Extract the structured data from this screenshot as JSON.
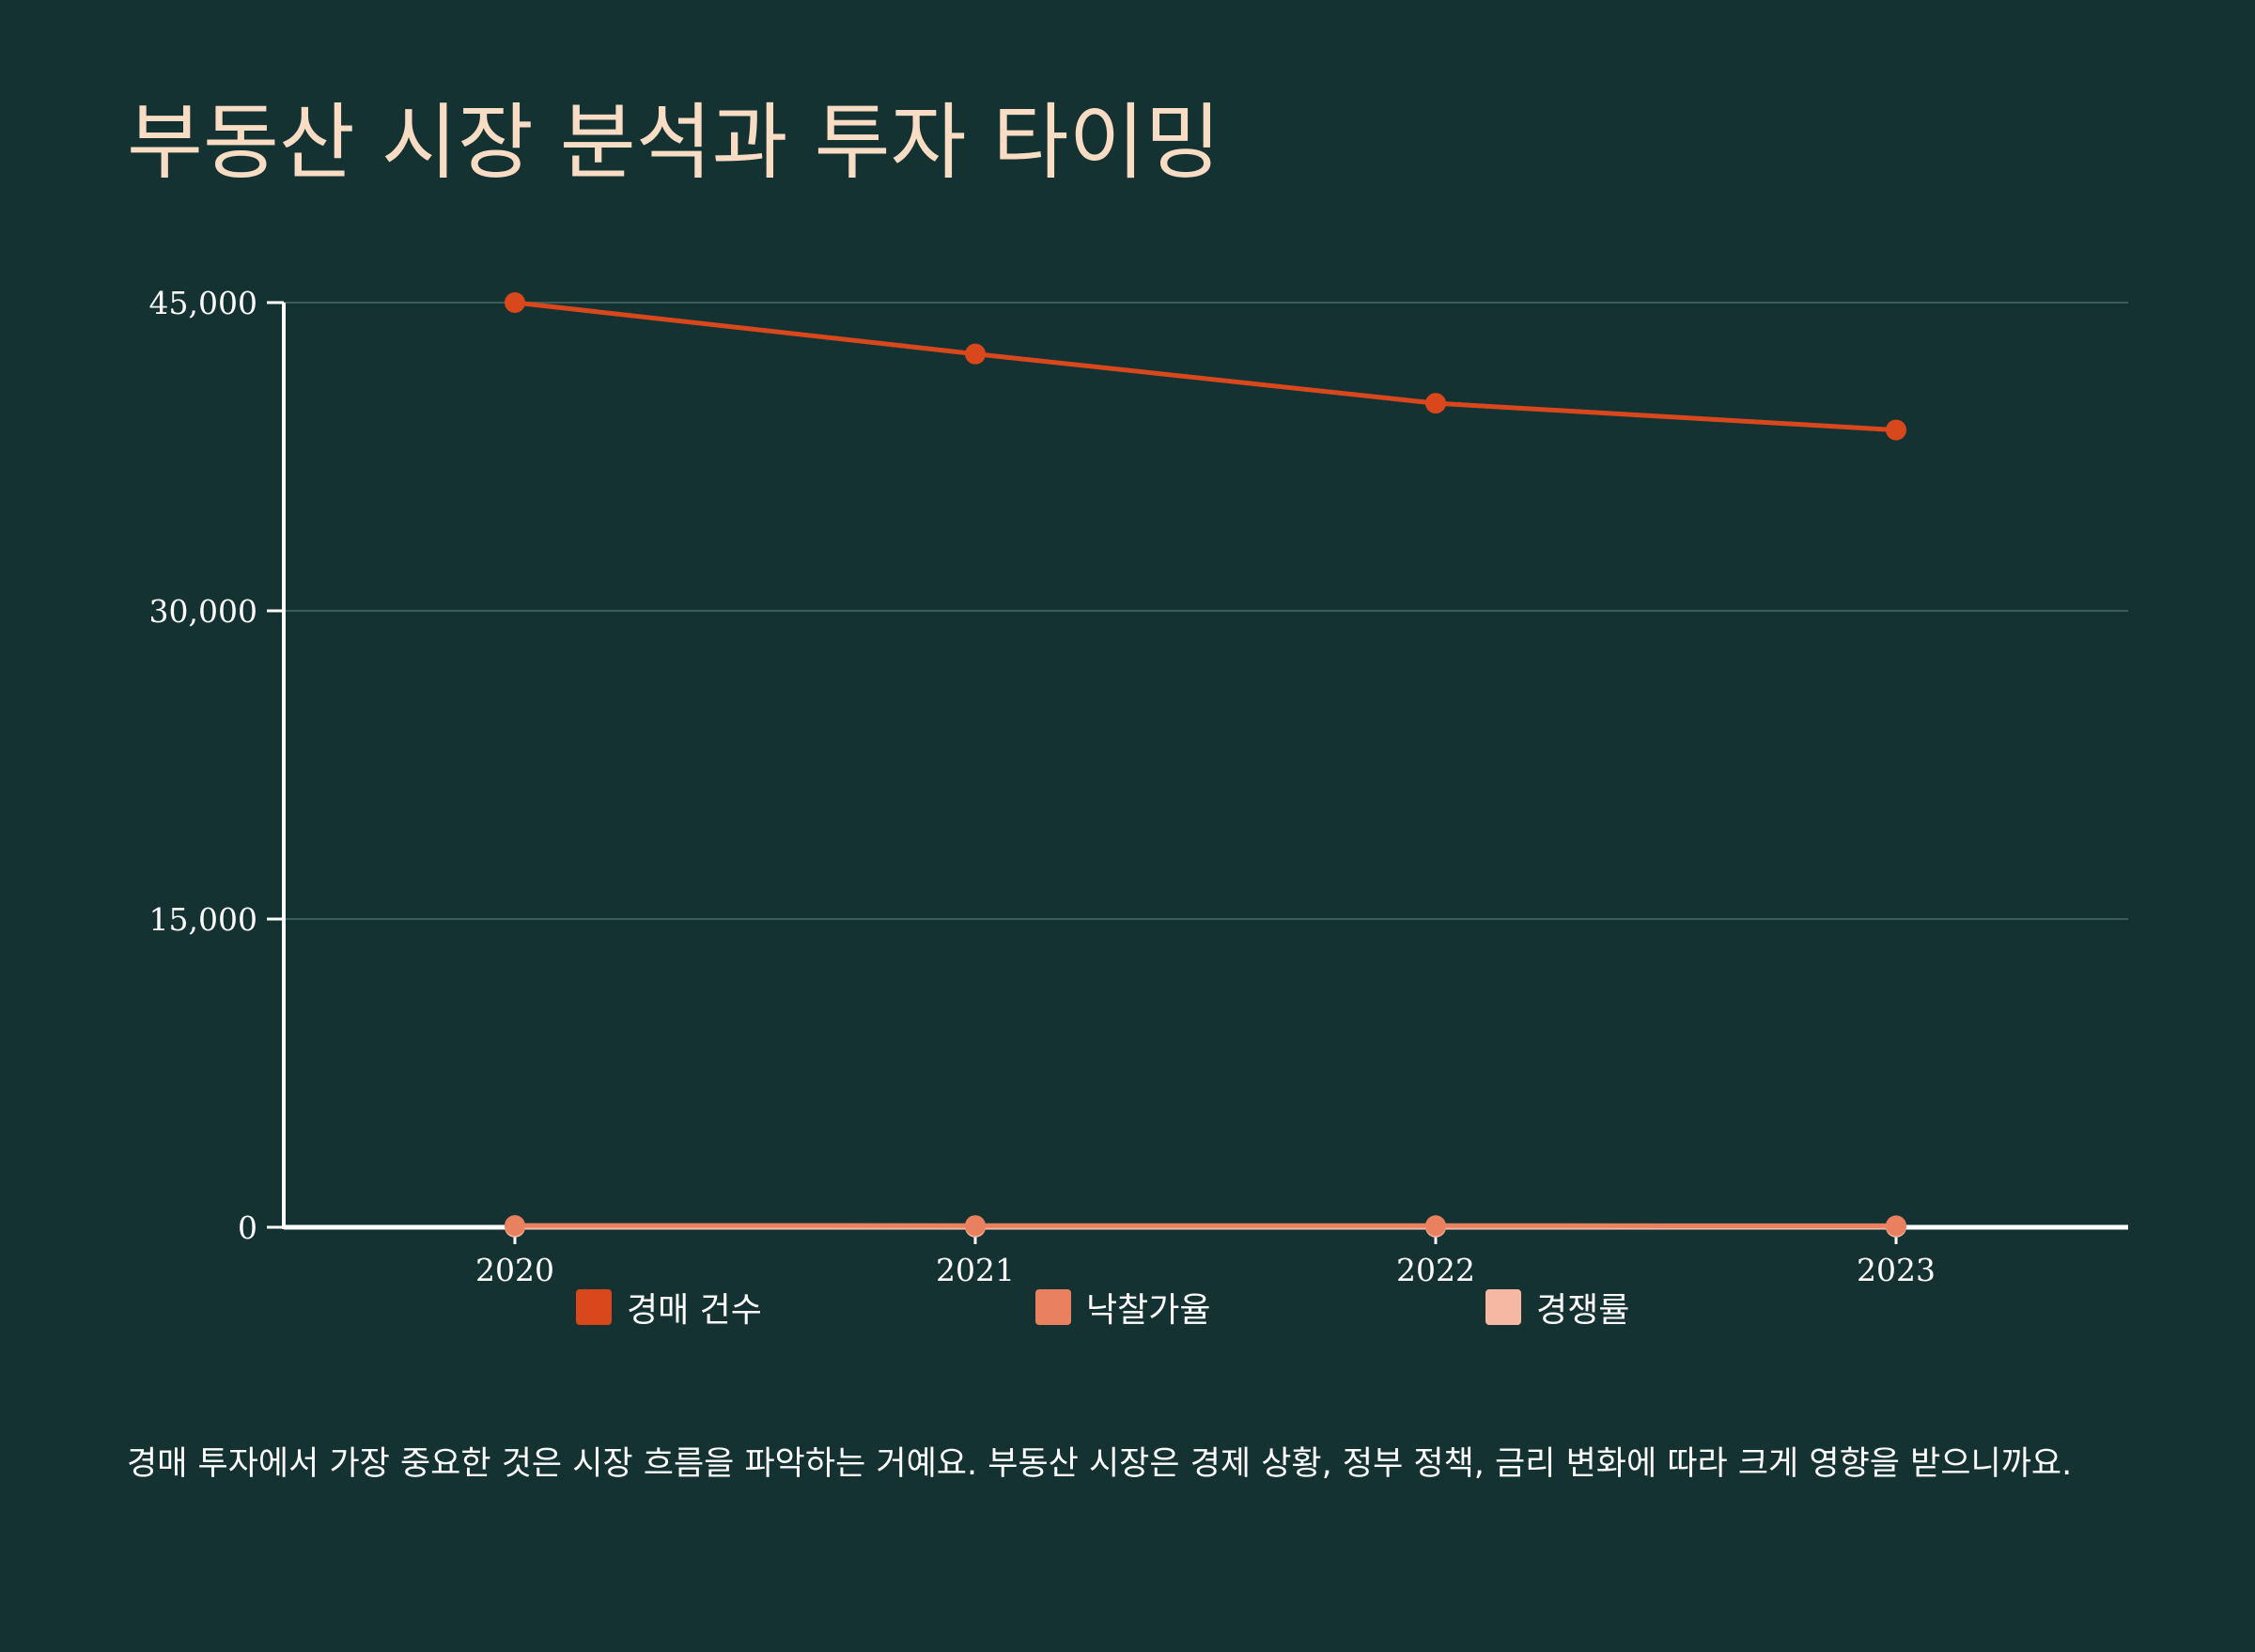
{
  "title": "부동산 시장 분석과 투자 타이밍",
  "description": "경매 투자에서 가장 중요한 것은 시장 흐름을 파악하는 거예요. 부동산 시장은 경제 상황, 정부 정책, 금리 변화에 따라 크게 영향을 받으니까요.",
  "colors": {
    "background": "#153232",
    "title": "#F9DCC4",
    "axis": "#FFFFFF",
    "grid": "#3C5E5B",
    "series_1": "#D9481C",
    "series_2": "#E98160",
    "series_3": "#F6B8A2"
  },
  "chart_data": {
    "type": "line",
    "title": "",
    "xlabel": "",
    "ylabel": "",
    "categories": [
      "2020",
      "2021",
      "2022",
      "2023"
    ],
    "y_ticks": [
      "0",
      "15,000",
      "30,000",
      "45,000"
    ],
    "y_tick_values": [
      0,
      15000,
      30000,
      45000
    ],
    "ylim": [
      0,
      45000
    ],
    "grid": true,
    "legend_position": "bottom",
    "series": [
      {
        "name": "경매 건수",
        "values": [
          45000,
          42500,
          40100,
          38800
        ],
        "color": "#D9481C"
      },
      {
        "name": "낙찰가율",
        "values": [
          85,
          82,
          78,
          75
        ],
        "color": "#E98160"
      },
      {
        "name": "경쟁률",
        "values": [
          8,
          7,
          6,
          5
        ],
        "color": "#F6B8A2"
      }
    ]
  }
}
